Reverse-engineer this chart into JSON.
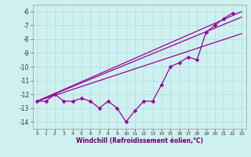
{
  "xlabel": "Windchill (Refroidissement éolien,°C)",
  "x_values": [
    0,
    1,
    2,
    3,
    4,
    5,
    6,
    7,
    8,
    9,
    10,
    11,
    12,
    13,
    14,
    15,
    16,
    17,
    18,
    19,
    20,
    21,
    22,
    23
  ],
  "smooth_line1_x": [
    0,
    23
  ],
  "smooth_line1_y": [
    -12.5,
    -6.0
  ],
  "smooth_line2_x": [
    0,
    23
  ],
  "smooth_line2_y": [
    -12.5,
    -6.4
  ],
  "smooth_line3_x": [
    0,
    23
  ],
  "smooth_line3_y": [
    -12.5,
    -7.6
  ],
  "zigzag_y": [
    -12.5,
    -12.5,
    -12.0,
    -12.5,
    -12.5,
    -12.3,
    -12.5,
    -13.0,
    -12.5,
    -13.0,
    -14.0,
    -13.2,
    -12.5,
    -12.5,
    -11.3,
    -10.0,
    -9.7,
    -9.3,
    -9.5,
    -7.5,
    -7.0,
    -6.5,
    -6.1,
    null
  ],
  "ylim": [
    -14.5,
    -5.5
  ],
  "xlim": [
    -0.5,
    23.5
  ],
  "yticks": [
    -14,
    -13,
    -12,
    -11,
    -10,
    -9,
    -8,
    -7,
    -6
  ],
  "xticks": [
    0,
    1,
    2,
    3,
    4,
    5,
    6,
    7,
    8,
    9,
    10,
    11,
    12,
    13,
    14,
    15,
    16,
    17,
    18,
    19,
    20,
    21,
    22,
    23
  ],
  "line_color": "#990099",
  "bg_color": "#cff0f0",
  "grid_color": "#aadddd",
  "marker": "D",
  "marker_size": 2.5,
  "xlabel_color": "#660066",
  "tick_color": "#333333",
  "ytick_fontsize": 5.5,
  "xtick_fontsize": 4.2,
  "xlabel_fontsize": 5.5
}
